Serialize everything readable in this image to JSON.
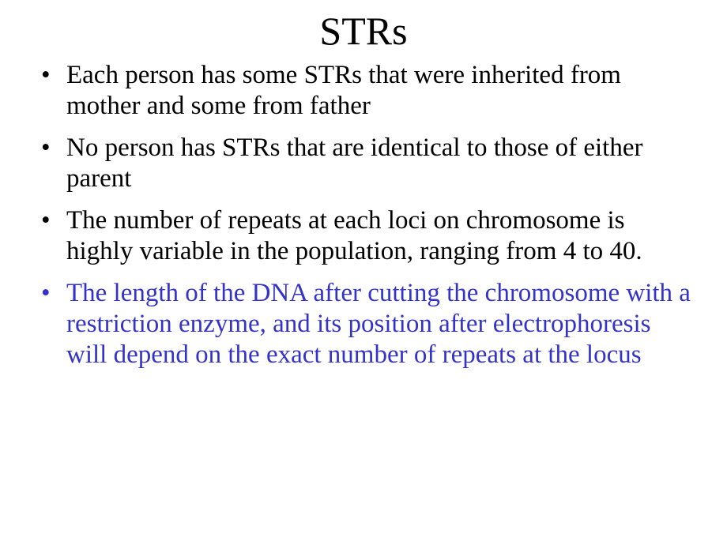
{
  "slide": {
    "title": "STRs",
    "title_fontsize": 50,
    "body_fontsize": 33,
    "background_color": "#ffffff",
    "text_color": "#000000",
    "highlight_color": "#3333cc",
    "font_family": "Times New Roman",
    "bullets": [
      {
        "text": "Each person has some STRs that were inherited from mother and some from father",
        "highlight": false
      },
      {
        "text": "No person has STRs that are identical to those of either parent",
        "highlight": false
      },
      {
        "text": "The number of repeats at each loci on chromosome is highly variable in the population, ranging from 4 to 40.",
        "highlight": false
      },
      {
        "text": "The length of the DNA after cutting the chromosome with a restriction enzyme, and its position after electrophoresis will depend on the exact number of repeats at the locus",
        "highlight": true
      }
    ]
  }
}
